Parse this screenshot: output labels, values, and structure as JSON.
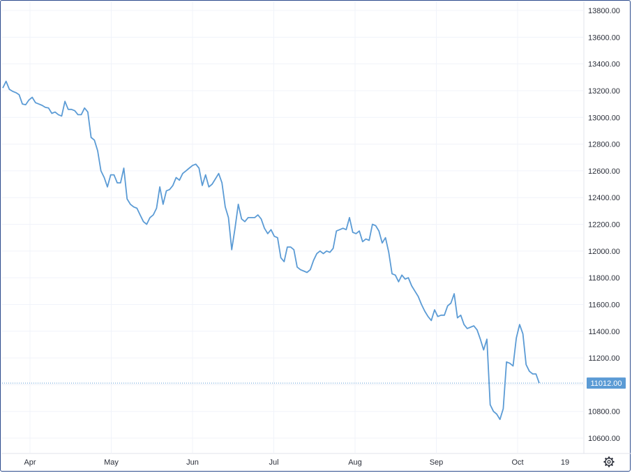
{
  "chart_data": {
    "type": "line",
    "title": "",
    "xlabel": "",
    "ylabel": "",
    "ylim": [
      10500,
      13850
    ],
    "y_ticks": [
      10600,
      10800,
      11000,
      11200,
      11400,
      11600,
      11800,
      12000,
      12200,
      12400,
      12600,
      12800,
      13000,
      13200,
      13400,
      13600,
      13800
    ],
    "y_tick_labels": [
      "10600.00",
      "10800.00",
      "11000.00",
      "11200.00",
      "11400.00",
      "11600.00",
      "11800.00",
      "12000.00",
      "12200.00",
      "12400.00",
      "12600.00",
      "12800.00",
      "13000.00",
      "13200.00",
      "13400.00",
      "13600.00",
      "13800.00"
    ],
    "x_tick_labels": [
      "Apr",
      "May",
      "Jun",
      "Jul",
      "Aug",
      "Sep",
      "Oct",
      "19"
    ],
    "grid": true,
    "last_value": 11012,
    "last_value_label": "11012.00",
    "line_color": "#5b9bd5",
    "series": [
      {
        "values": [
          13220,
          13270,
          13210,
          13195,
          13185,
          13170,
          13100,
          13095,
          13130,
          13150,
          13110,
          13100,
          13090,
          13075,
          13070,
          13030,
          13040,
          13020,
          13010,
          13120,
          13060,
          13060,
          13050,
          13020,
          13020,
          13070,
          13040,
          12850,
          12830,
          12750,
          12600,
          12550,
          12480,
          12570,
          12570,
          12510,
          12510,
          12620,
          12390,
          12350,
          12330,
          12320,
          12270,
          12220,
          12200,
          12250,
          12270,
          12320,
          12480,
          12350,
          12450,
          12460,
          12490,
          12550,
          12530,
          12580,
          12600,
          12620,
          12640,
          12650,
          12620,
          12490,
          12570,
          12480,
          12500,
          12540,
          12580,
          12510,
          12330,
          12250,
          12010,
          12170,
          12350,
          12240,
          12220,
          12250,
          12250,
          12250,
          12270,
          12240,
          12170,
          12130,
          12160,
          12110,
          12100,
          11950,
          11920,
          12030,
          12030,
          12010,
          11880,
          11860,
          11850,
          11840,
          11860,
          11930,
          11980,
          12000,
          11980,
          12000,
          11990,
          12020,
          12150,
          12160,
          12170,
          12160,
          12250,
          12140,
          12130,
          12150,
          12070,
          12090,
          12080,
          12200,
          12190,
          12150,
          12060,
          12100,
          11990,
          11830,
          11820,
          11770,
          11820,
          11790,
          11800,
          11740,
          11700,
          11660,
          11600,
          11550,
          11510,
          11480,
          11560,
          11510,
          11520,
          11520,
          11590,
          11610,
          11680,
          11500,
          11520,
          11450,
          11420,
          11430,
          11440,
          11410,
          11340,
          11260,
          11340,
          10850,
          10800,
          10780,
          10740,
          10820,
          11170,
          11160,
          11140,
          11350,
          11450,
          11380,
          11150,
          11100,
          11080,
          11080,
          11012
        ]
      }
    ]
  },
  "settings": {
    "icon": "gear-icon"
  }
}
